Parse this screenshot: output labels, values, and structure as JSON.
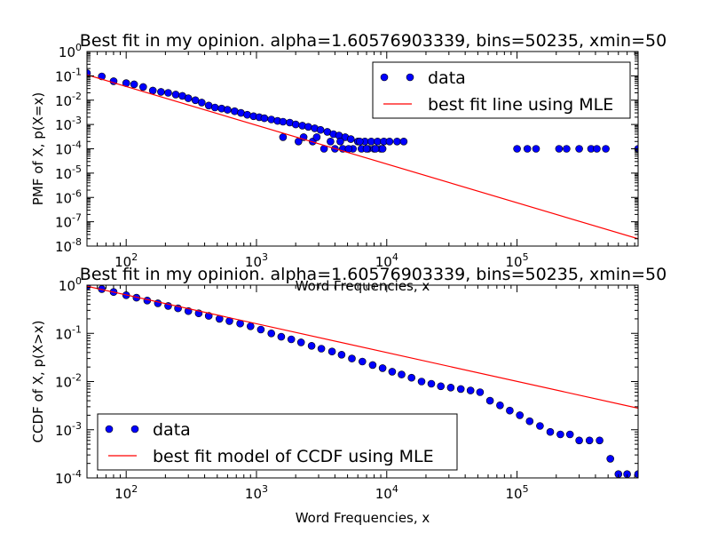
{
  "chart_data": [
    {
      "type": "scatter",
      "title": "Best fit in my opinion. alpha=1.60576903339, bins=50235, xmin=50",
      "xlabel": "Word Frequencies, x",
      "ylabel": "PMF of X, p(X=x)",
      "xscale": "log",
      "yscale": "log",
      "xlim": [
        50,
        850000
      ],
      "ylim": [
        1e-08,
        1
      ],
      "xticks": [
        {
          "v": 100,
          "label": "10",
          "exp": "2"
        },
        {
          "v": 1000,
          "label": "10",
          "exp": "3"
        },
        {
          "v": 10000,
          "label": "10",
          "exp": "4"
        },
        {
          "v": 100000,
          "label": "10",
          "exp": "5"
        }
      ],
      "yticks": [
        {
          "v": 1e-08,
          "label": "10",
          "exp": "-8"
        },
        {
          "v": 1e-07,
          "label": "10",
          "exp": "-7"
        },
        {
          "v": 1e-06,
          "label": "10",
          "exp": "-6"
        },
        {
          "v": 1e-05,
          "label": "10",
          "exp": "-5"
        },
        {
          "v": 0.0001,
          "label": "10",
          "exp": "-4"
        },
        {
          "v": 0.001,
          "label": "10",
          "exp": "-3"
        },
        {
          "v": 0.01,
          "label": "10",
          "exp": "-2"
        },
        {
          "v": 0.1,
          "label": "10",
          "exp": "-1"
        },
        {
          "v": 1,
          "label": "10",
          "exp": "0"
        }
      ],
      "legend_position": "top-right",
      "series": [
        {
          "name": "data",
          "kind": "markers",
          "color": "#0000ff",
          "x": [
            50,
            65,
            80,
            100,
            115,
            135,
            160,
            185,
            210,
            240,
            270,
            300,
            340,
            380,
            430,
            480,
            540,
            600,
            680,
            760,
            850,
            950,
            1050,
            1150,
            1300,
            1450,
            1600,
            1800,
            2000,
            2250,
            2500,
            2800,
            3100,
            3500,
            3900,
            4300,
            4800,
            5300,
            6000,
            6800,
            7600,
            8500,
            9500,
            10500,
            12000,
            13500,
            1600,
            2100,
            2700,
            3300,
            4000,
            4600,
            5500,
            6400,
            7200,
            8000,
            9000,
            2300,
            2900,
            3700,
            4400,
            5100,
            6200,
            7000,
            8200,
            9300,
            100000,
            120000,
            140000,
            210000,
            240000,
            300000,
            370000,
            410000,
            480000,
            850000
          ],
          "y": [
            0.13,
            0.095,
            0.06,
            0.05,
            0.045,
            0.035,
            0.025,
            0.022,
            0.02,
            0.017,
            0.015,
            0.012,
            0.01,
            0.008,
            0.006,
            0.005,
            0.0045,
            0.004,
            0.0035,
            0.003,
            0.0025,
            0.0022,
            0.002,
            0.0018,
            0.0016,
            0.0014,
            0.0013,
            0.0012,
            0.001,
            0.0009,
            0.0008,
            0.0007,
            0.0006,
            0.0005,
            0.0004,
            0.00035,
            0.0003,
            0.00025,
            0.0002,
            0.0002,
            0.0002,
            0.0002,
            0.0002,
            0.0002,
            0.0002,
            0.0002,
            0.0003,
            0.0002,
            0.0002,
            0.0001,
            0.0001,
            0.0001,
            0.0001,
            0.0001,
            0.0001,
            0.0001,
            0.0001,
            0.0003,
            0.0003,
            0.0002,
            0.0002,
            0.0001,
            0.0002,
            0.0001,
            0.0001,
            0.0001,
            0.0001,
            0.0001,
            0.0001,
            0.0001,
            0.0001,
            0.0001,
            0.0001,
            0.0001,
            0.0001,
            0.0001
          ]
        },
        {
          "name": "best fit line using MLE",
          "kind": "line",
          "color": "#ff0000",
          "x": [
            50,
            850000
          ],
          "y": [
            0.11,
            2e-08
          ]
        }
      ]
    },
    {
      "type": "scatter",
      "title": "Best fit in my opinion. alpha=1.60576903339, bins=50235, xmin=50",
      "xlabel": "Word Frequencies, x",
      "ylabel": "CCDF of X, p(X>x)",
      "xscale": "log",
      "yscale": "log",
      "xlim": [
        50,
        850000
      ],
      "ylim": [
        0.0001,
        1
      ],
      "xticks": [
        {
          "v": 100,
          "label": "10",
          "exp": "2"
        },
        {
          "v": 1000,
          "label": "10",
          "exp": "3"
        },
        {
          "v": 10000,
          "label": "10",
          "exp": "4"
        },
        {
          "v": 100000,
          "label": "10",
          "exp": "5"
        }
      ],
      "yticks": [
        {
          "v": 0.0001,
          "label": "10",
          "exp": "-4"
        },
        {
          "v": 0.001,
          "label": "10",
          "exp": "-3"
        },
        {
          "v": 0.01,
          "label": "10",
          "exp": "-2"
        },
        {
          "v": 0.1,
          "label": "10",
          "exp": "-1"
        },
        {
          "v": 1,
          "label": "10",
          "exp": "0"
        }
      ],
      "legend_position": "bottom-left",
      "series": [
        {
          "name": "data",
          "kind": "markers",
          "color": "#0000ff",
          "x": [
            50,
            65,
            80,
            100,
            120,
            145,
            175,
            210,
            250,
            300,
            360,
            430,
            520,
            620,
            750,
            900,
            1080,
            1300,
            1550,
            1850,
            2200,
            2650,
            3150,
            3800,
            4500,
            5400,
            6500,
            7800,
            9300,
            11000,
            13000,
            15500,
            18500,
            22000,
            26000,
            31000,
            37000,
            44000,
            52000,
            62000,
            74000,
            88000,
            105000,
            125000,
            150000,
            180000,
            215000,
            255000,
            300000,
            360000,
            430000,
            520000,
            600000,
            700000,
            850000
          ],
          "y": [
            0.95,
            0.83,
            0.72,
            0.62,
            0.55,
            0.48,
            0.42,
            0.37,
            0.33,
            0.29,
            0.26,
            0.23,
            0.2,
            0.18,
            0.16,
            0.14,
            0.12,
            0.1,
            0.085,
            0.075,
            0.065,
            0.055,
            0.048,
            0.042,
            0.036,
            0.03,
            0.026,
            0.022,
            0.019,
            0.016,
            0.014,
            0.012,
            0.01,
            0.009,
            0.008,
            0.0075,
            0.007,
            0.0065,
            0.006,
            0.004,
            0.0032,
            0.0025,
            0.002,
            0.0015,
            0.0012,
            0.0009,
            0.0008,
            0.0008,
            0.0006,
            0.0006,
            0.0006,
            0.00025,
            0.00012,
            0.00012,
            0.00012
          ]
        },
        {
          "name": "best fit model of CCDF using MLE",
          "kind": "line",
          "color": "#ff0000",
          "x": [
            50,
            850000
          ],
          "y": [
            0.95,
            0.0028
          ]
        }
      ]
    }
  ]
}
